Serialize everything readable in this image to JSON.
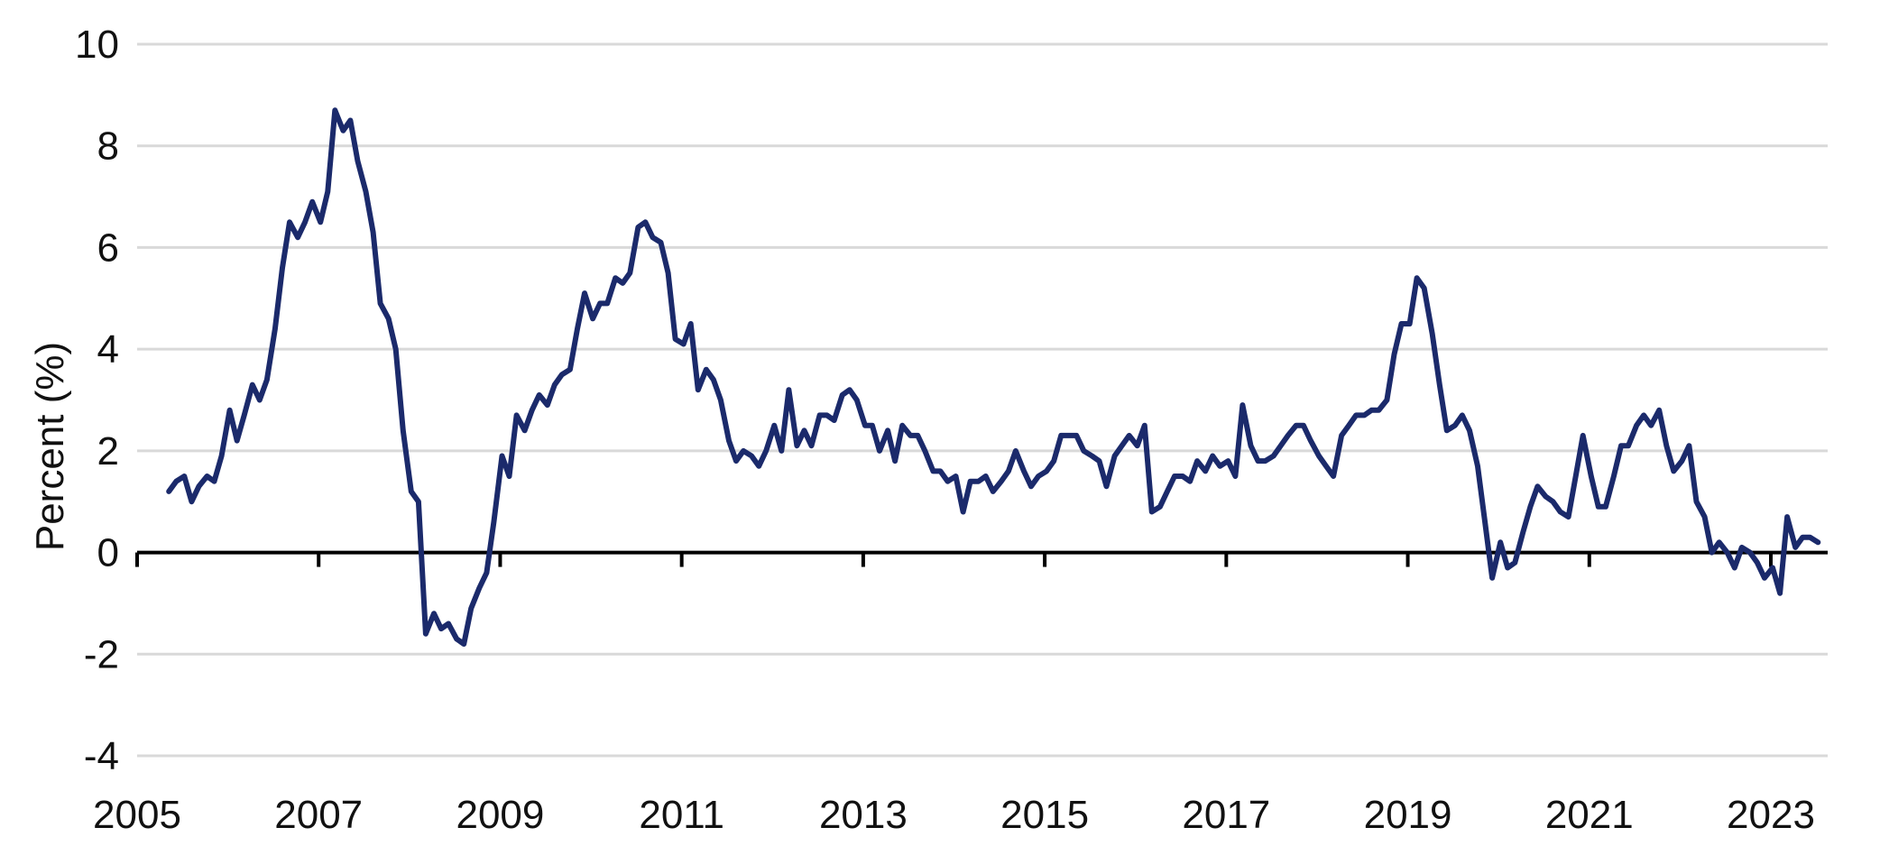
{
  "chart_data": {
    "type": "line",
    "title": "",
    "xlabel": "",
    "ylabel": "Percent (%)",
    "ylim": [
      -4,
      10
    ],
    "xlim": [
      2005,
      2023.6
    ],
    "y_ticks": [
      "10",
      "8",
      "6",
      "4",
      "2",
      "0",
      "-2",
      "-4"
    ],
    "y_tick_values": [
      10,
      8,
      6,
      4,
      2,
      0,
      -2,
      -4
    ],
    "x_ticks": [
      "2005",
      "2007",
      "2009",
      "2011",
      "2013",
      "2015",
      "2017",
      "2019",
      "2021",
      "2023"
    ],
    "x_tick_values": [
      2005,
      2007,
      2009,
      2011,
      2013,
      2015,
      2017,
      2019,
      2021,
      2023
    ],
    "grid": true,
    "legend": "none",
    "colors": {
      "series": "#1b2a6b",
      "grid": "#d9d9d9",
      "axis": "#000000"
    },
    "series": [
      {
        "x": [
          2005.35,
          2005.43,
          2005.52,
          2005.6,
          2005.68,
          2005.77,
          2005.85,
          2005.93,
          2006.02,
          2006.1,
          2006.18,
          2006.27,
          2006.35,
          2006.43,
          2006.52,
          2006.6,
          2006.68,
          2006.77,
          2006.85,
          2006.93,
          2007.02,
          2007.1,
          2007.18,
          2007.27,
          2007.35,
          2007.43,
          2007.52,
          2007.6,
          2007.68,
          2007.77,
          2007.85,
          2007.93,
          2008.02,
          2008.1,
          2008.18,
          2008.27,
          2008.35,
          2008.43,
          2008.52,
          2008.6,
          2008.68,
          2008.77,
          2008.85,
          2008.93,
          2009.02,
          2009.1,
          2009.18,
          2009.27,
          2009.35,
          2009.43,
          2009.52,
          2009.6,
          2009.68,
          2009.77,
          2009.85,
          2009.93,
          2010.02,
          2010.1,
          2010.18,
          2010.27,
          2010.35,
          2010.43,
          2010.52,
          2010.6,
          2010.68,
          2010.77,
          2010.85,
          2010.93,
          2011.02,
          2011.1,
          2011.18,
          2011.27,
          2011.35,
          2011.43,
          2011.52,
          2011.6,
          2011.68,
          2011.77,
          2011.85,
          2011.93,
          2012.02,
          2012.1,
          2012.18,
          2012.27,
          2012.35,
          2012.43,
          2012.52,
          2012.6,
          2012.68,
          2012.77,
          2012.85,
          2012.93,
          2013.02,
          2013.1,
          2013.18,
          2013.27,
          2013.35,
          2013.43,
          2013.52,
          2013.6,
          2013.68,
          2013.77,
          2013.85,
          2013.93,
          2014.02,
          2014.1,
          2014.18,
          2014.27,
          2014.35,
          2014.43,
          2014.52,
          2014.6,
          2014.68,
          2014.77,
          2014.85,
          2014.93,
          2015.02,
          2015.1,
          2015.18,
          2015.27,
          2015.35,
          2015.43,
          2015.52,
          2015.6,
          2015.68,
          2015.77,
          2015.85,
          2015.93,
          2016.02,
          2016.1,
          2016.18,
          2016.27,
          2016.35,
          2016.43,
          2016.52,
          2016.6,
          2016.68,
          2016.77,
          2016.85,
          2016.93,
          2017.02,
          2017.1,
          2017.18,
          2017.27,
          2017.35,
          2017.43,
          2017.52,
          2017.6,
          2017.68,
          2017.77,
          2017.85,
          2017.93,
          2018.02,
          2018.1,
          2018.18,
          2018.27,
          2018.35,
          2018.43,
          2018.52,
          2018.6,
          2018.68,
          2018.77,
          2018.85,
          2018.93,
          2019.02,
          2019.1,
          2019.18,
          2019.27,
          2019.35,
          2019.43,
          2019.52,
          2019.6,
          2019.68,
          2019.77,
          2019.85,
          2019.93,
          2020.02,
          2020.1,
          2020.18,
          2020.27,
          2020.35,
          2020.43,
          2020.52,
          2020.6,
          2020.68,
          2020.77,
          2020.85,
          2020.93,
          2021.02,
          2021.1,
          2021.18,
          2021.27,
          2021.35,
          2021.43,
          2021.52,
          2021.6,
          2021.68,
          2021.77,
          2021.85,
          2021.93,
          2022.02,
          2022.1,
          2022.18,
          2022.27,
          2022.35,
          2022.43,
          2022.52,
          2022.6,
          2022.68,
          2022.77,
          2022.85,
          2022.93,
          2023.02,
          2023.1,
          2023.18,
          2023.27,
          2023.35,
          2023.43,
          2023.52
        ],
        "values": [
          1.2,
          1.4,
          1.5,
          1.0,
          1.3,
          1.5,
          1.4,
          1.9,
          2.8,
          2.2,
          2.7,
          3.3,
          3.0,
          3.4,
          4.4,
          5.6,
          6.5,
          6.2,
          6.5,
          6.9,
          6.5,
          7.1,
          8.7,
          8.3,
          8.5,
          7.7,
          7.1,
          6.3,
          4.9,
          4.6,
          4.0,
          2.4,
          1.2,
          1.0,
          -1.6,
          -1.2,
          -1.5,
          -1.4,
          -1.7,
          -1.8,
          -1.1,
          -0.7,
          -0.4,
          0.6,
          1.9,
          1.5,
          2.7,
          2.4,
          2.8,
          3.1,
          2.9,
          3.3,
          3.5,
          3.6,
          4.4,
          5.1,
          4.6,
          4.9,
          4.9,
          5.4,
          5.3,
          5.5,
          6.4,
          6.5,
          6.2,
          6.1,
          5.5,
          4.2,
          4.1,
          4.5,
          3.2,
          3.6,
          3.4,
          3.0,
          2.2,
          1.8,
          2.0,
          1.9,
          1.7,
          2.0,
          2.5,
          2.0,
          3.2,
          2.1,
          2.4,
          2.1,
          2.7,
          2.7,
          2.6,
          3.1,
          3.2,
          3.0,
          2.5,
          2.5,
          2.0,
          2.4,
          1.8,
          2.5,
          2.3,
          2.3,
          2.0,
          1.6,
          1.6,
          1.4,
          1.5,
          0.8,
          1.4,
          1.4,
          1.5,
          1.2,
          1.4,
          1.6,
          2.0,
          1.6,
          1.3,
          1.5,
          1.6,
          1.8,
          2.3,
          2.3,
          2.3,
          2.0,
          1.9,
          1.8,
          1.3,
          1.9,
          2.1,
          2.3,
          2.1,
          2.5,
          0.8,
          0.9,
          1.2,
          1.5,
          1.5,
          1.4,
          1.8,
          1.6,
          1.9,
          1.7,
          1.8,
          1.5,
          2.9,
          2.1,
          1.8,
          1.8,
          1.9,
          2.1,
          2.3,
          2.5,
          2.5,
          2.2,
          1.9,
          1.7,
          1.5,
          2.3,
          2.5,
          2.7,
          2.7,
          2.8,
          2.8,
          3.0,
          3.9,
          4.5,
          4.5,
          5.4,
          5.2,
          4.3,
          3.3,
          2.4,
          2.5,
          2.7,
          2.4,
          1.7,
          0.6,
          -0.5,
          0.2,
          -0.3,
          -0.2,
          0.4,
          0.9,
          1.3,
          1.1,
          1.0,
          0.8,
          0.7,
          1.5,
          2.3,
          1.5,
          0.9,
          0.9,
          1.5,
          2.1,
          2.1,
          2.5,
          2.7,
          2.5,
          2.8,
          2.1,
          1.6,
          1.8,
          2.1,
          1.0,
          0.7,
          0.0,
          0.2,
          0.0,
          -0.3,
          0.1,
          0.0,
          -0.2,
          -0.5,
          -0.3,
          -0.8,
          0.7,
          0.1,
          0.3,
          0.3,
          0.2
        ]
      }
    ]
  }
}
